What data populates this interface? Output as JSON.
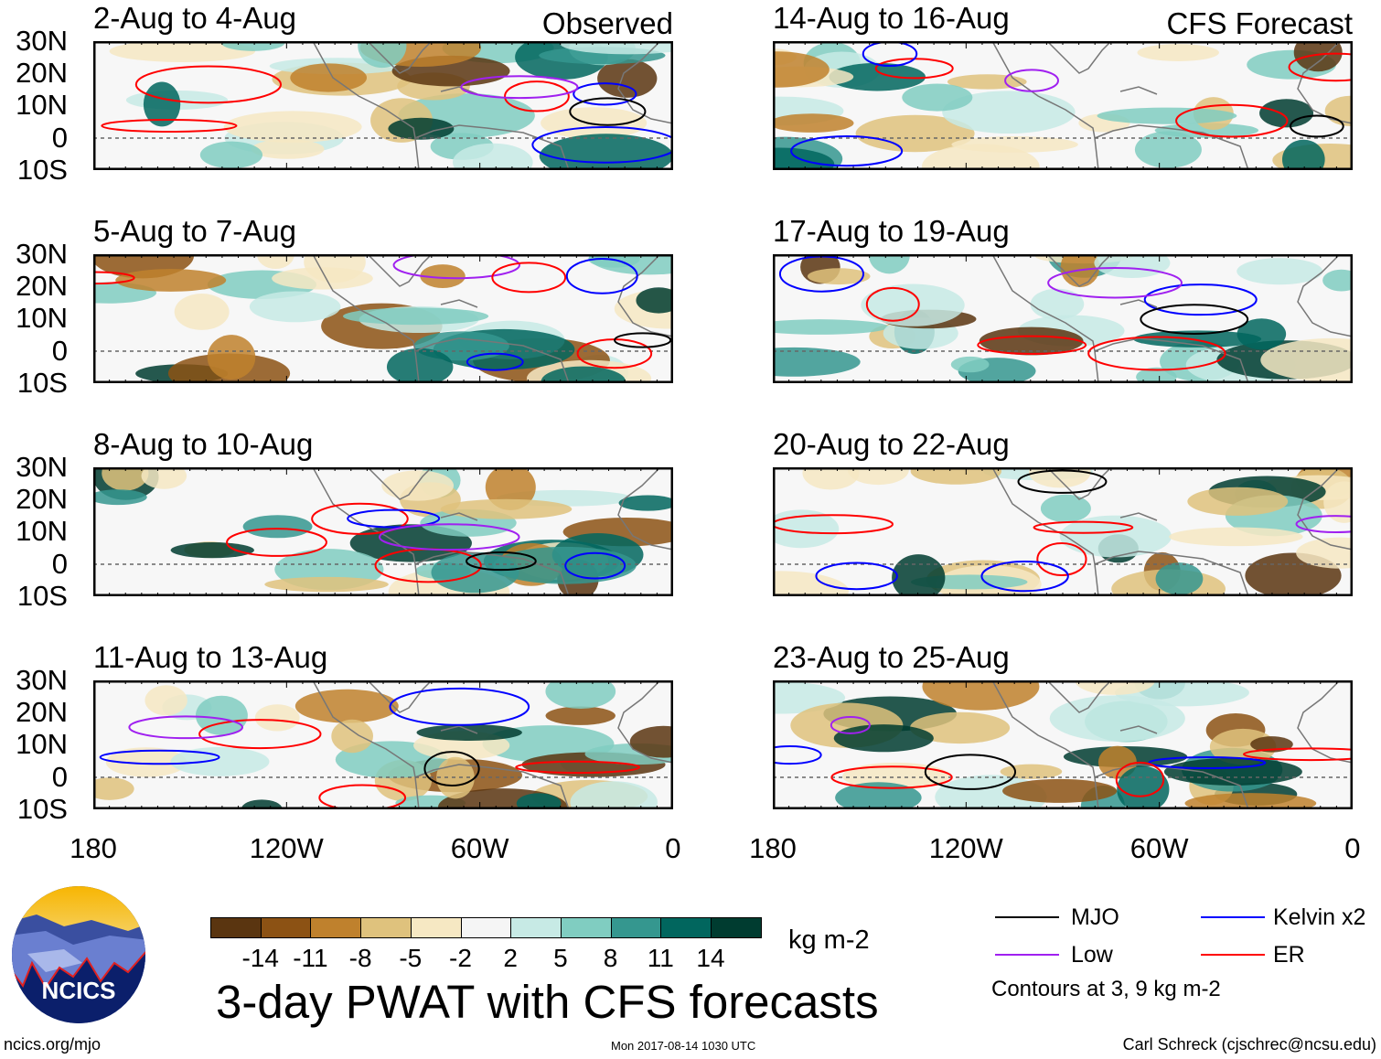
{
  "panels": [
    {
      "title": "2-Aug to 4-Aug",
      "label": "Observed",
      "column": "left"
    },
    {
      "title": "5-Aug to 7-Aug",
      "label": "",
      "column": "left"
    },
    {
      "title": "8-Aug to 10-Aug",
      "label": "",
      "column": "left"
    },
    {
      "title": "11-Aug to 13-Aug",
      "label": "",
      "column": "left"
    },
    {
      "title": "14-Aug to 16-Aug",
      "label": "CFS Forecast",
      "column": "right"
    },
    {
      "title": "17-Aug to 19-Aug",
      "label": "",
      "column": "right"
    },
    {
      "title": "20-Aug to 22-Aug",
      "label": "",
      "column": "right"
    },
    {
      "title": "23-Aug to 25-Aug",
      "label": "",
      "column": "right"
    }
  ],
  "lat_labels": [
    "30N",
    "20N",
    "10N",
    "0",
    "10S"
  ],
  "lon_labels": [
    "180",
    "120W",
    "60W",
    "0"
  ],
  "colorbar": {
    "levels": [
      "-14",
      "-11",
      "-8",
      "-5",
      "-2",
      "2",
      "5",
      "8",
      "11",
      "14"
    ],
    "colors": [
      "#5a3510",
      "#8c5214",
      "#bf812d",
      "#dfc27d",
      "#f6e8c3",
      "#f5f5f5",
      "#c7eae5",
      "#80cdc1",
      "#35978f",
      "#01665e",
      "#003c30"
    ],
    "units": "kg m-2"
  },
  "title": "3-day PWAT with CFS forecasts",
  "legend": {
    "items": [
      {
        "label": "MJO",
        "color": "#000000"
      },
      {
        "label": "Kelvin x2",
        "color": "#0000ff"
      },
      {
        "label": "Low",
        "color": "#a020f0"
      },
      {
        "label": "ER",
        "color": "#ff0000"
      }
    ],
    "note": "Contours at 3, 9 kg m-2"
  },
  "logo_text": "NCICS",
  "footer": {
    "left": "ncics.org/mjo",
    "center": "Mon 2017-08-14 1030 UTC",
    "right": "Carl Schreck (cjschrec@ncsu.edu)"
  }
}
